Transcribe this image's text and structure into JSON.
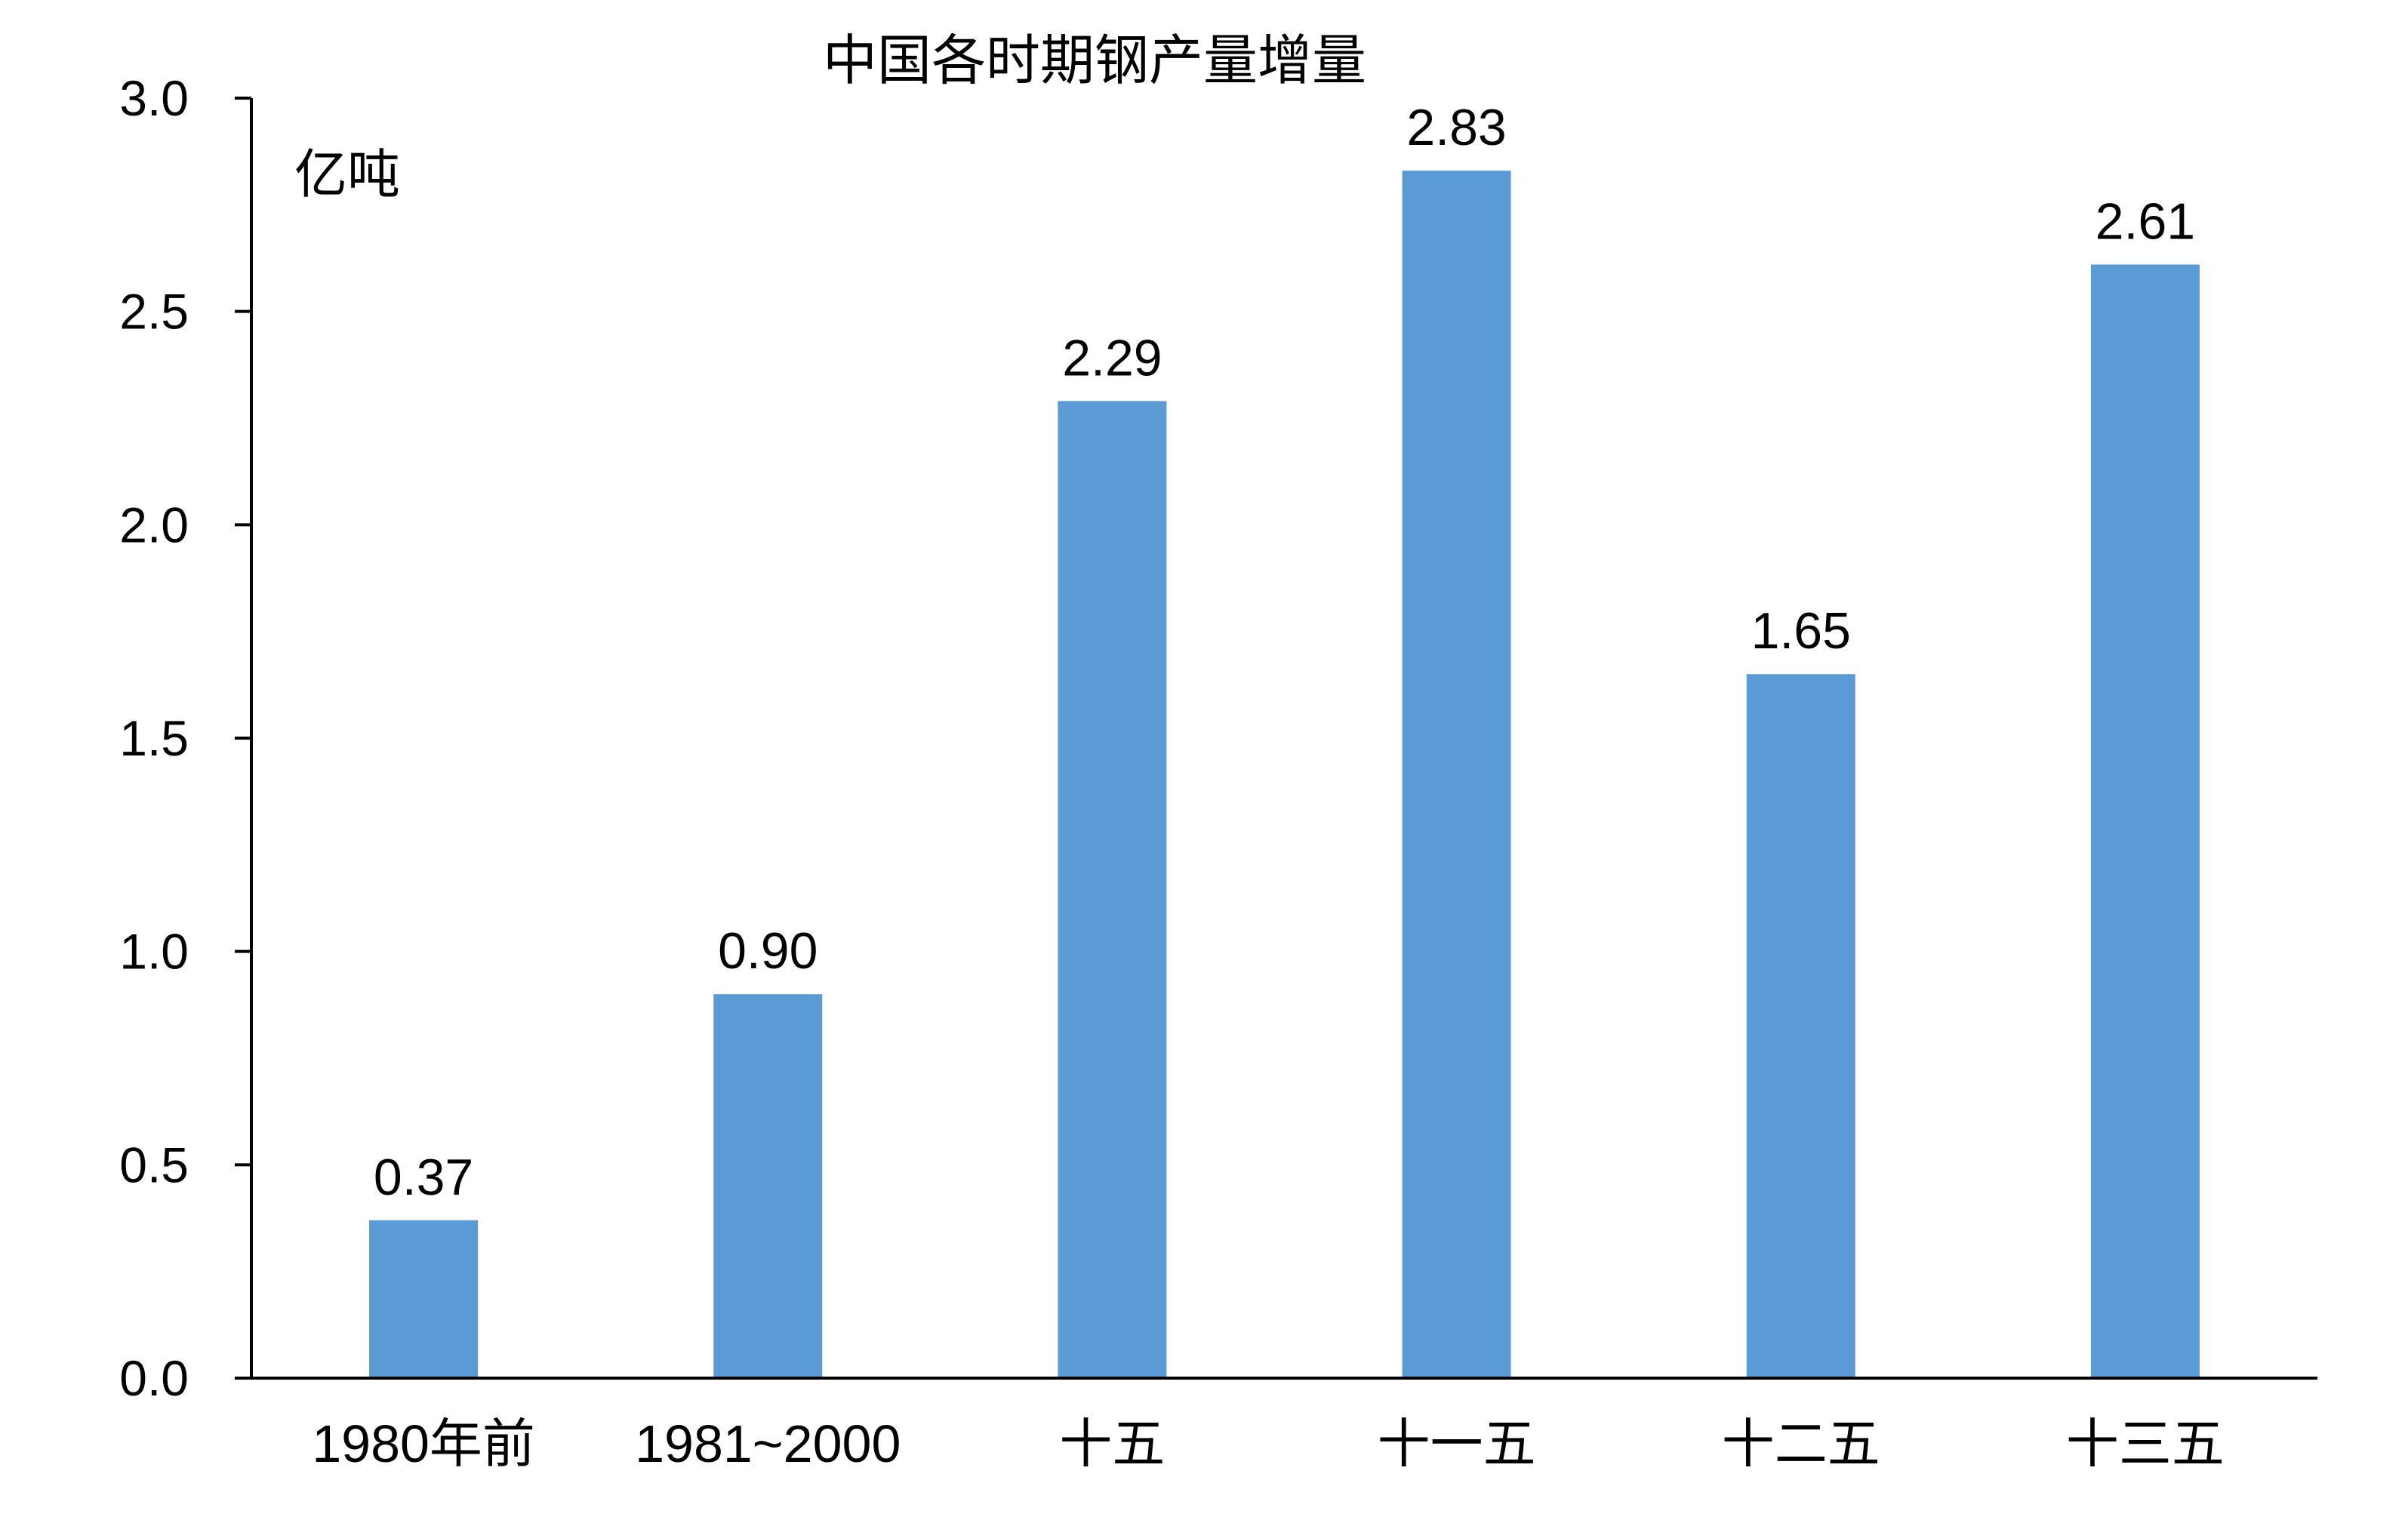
{
  "chart_data": {
    "type": "bar",
    "title": "中国各时期钢产量增量",
    "unit_label": "亿吨",
    "categories": [
      "1980年前",
      "1981~2000",
      "十五",
      "十一五",
      "十二五",
      "十三五"
    ],
    "values": [
      0.37,
      0.9,
      2.29,
      2.83,
      1.65,
      2.61
    ],
    "data_labels": [
      "0.37",
      "0.90",
      "2.29",
      "2.83",
      "1.65",
      "2.61"
    ],
    "ylim": [
      0,
      3.0
    ],
    "yticks": [
      "0.0",
      "0.5",
      "1.0",
      "1.5",
      "2.0",
      "2.5",
      "3.0"
    ],
    "ytick_values": [
      0,
      0.5,
      1.0,
      1.5,
      2.0,
      2.5,
      3.0
    ],
    "xlabel": "",
    "ylabel": "",
    "grid": false,
    "legend": "none",
    "bar_color": "#5b9bd5",
    "axis_color": "#000000"
  }
}
